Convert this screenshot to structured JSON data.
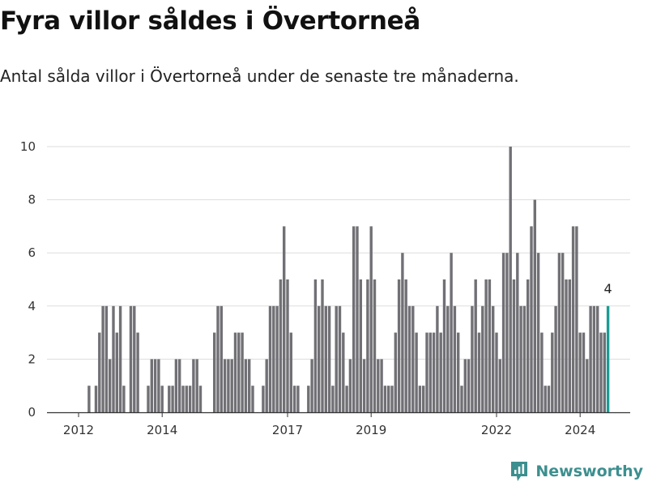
{
  "title": "Fyra villor såldes i Övertorneå",
  "subtitle": "Antal sålda villor i Övertorneå under de senaste tre månaderna.",
  "brand": {
    "name": "Newsworthy"
  },
  "colors": {
    "bar": "#717075",
    "highlight": "#1a9c96",
    "grid": "#dddddd",
    "axis": "#333333",
    "brand": "#3d8f8f"
  },
  "chart_data": {
    "type": "bar",
    "title": "Fyra villor såldes i Övertorneå",
    "xlabel": "",
    "ylabel": "",
    "ylim": [
      0,
      10
    ],
    "yticks": [
      0,
      2,
      4,
      6,
      8,
      10
    ],
    "grid": true,
    "x_tick_labels": [
      {
        "label": "2012",
        "index": 0
      },
      {
        "label": "2014",
        "index": 24
      },
      {
        "label": "2017",
        "index": 60
      },
      {
        "label": "2019",
        "index": 84
      },
      {
        "label": "2022",
        "index": 120
      },
      {
        "label": "2024",
        "index": 144
      }
    ],
    "start_year": 2012,
    "start_month": 1,
    "values": [
      0,
      0,
      0,
      1,
      0,
      1,
      3,
      4,
      4,
      2,
      4,
      3,
      4,
      1,
      0,
      4,
      4,
      3,
      0,
      0,
      1,
      2,
      2,
      2,
      1,
      0,
      1,
      1,
      2,
      2,
      1,
      1,
      1,
      2,
      2,
      1,
      0,
      0,
      0,
      3,
      4,
      4,
      2,
      2,
      2,
      3,
      3,
      3,
      2,
      2,
      1,
      0,
      0,
      1,
      2,
      4,
      4,
      4,
      5,
      7,
      5,
      3,
      1,
      1,
      0,
      0,
      1,
      2,
      5,
      4,
      5,
      4,
      4,
      1,
      4,
      4,
      3,
      1,
      2,
      7,
      7,
      5,
      2,
      5,
      7,
      5,
      2,
      2,
      1,
      1,
      1,
      3,
      5,
      6,
      5,
      4,
      4,
      3,
      1,
      1,
      3,
      3,
      3,
      4,
      3,
      5,
      4,
      6,
      4,
      3,
      1,
      2,
      2,
      4,
      5,
      3,
      4,
      5,
      5,
      4,
      3,
      2,
      6,
      6,
      10,
      5,
      6,
      4,
      4,
      5,
      7,
      8,
      6,
      3,
      1,
      1,
      3,
      4,
      6,
      6,
      5,
      5,
      7,
      7,
      3,
      3,
      2,
      4,
      4,
      4,
      3,
      3,
      4
    ],
    "highlight_last": true,
    "last_value_label": "4"
  }
}
